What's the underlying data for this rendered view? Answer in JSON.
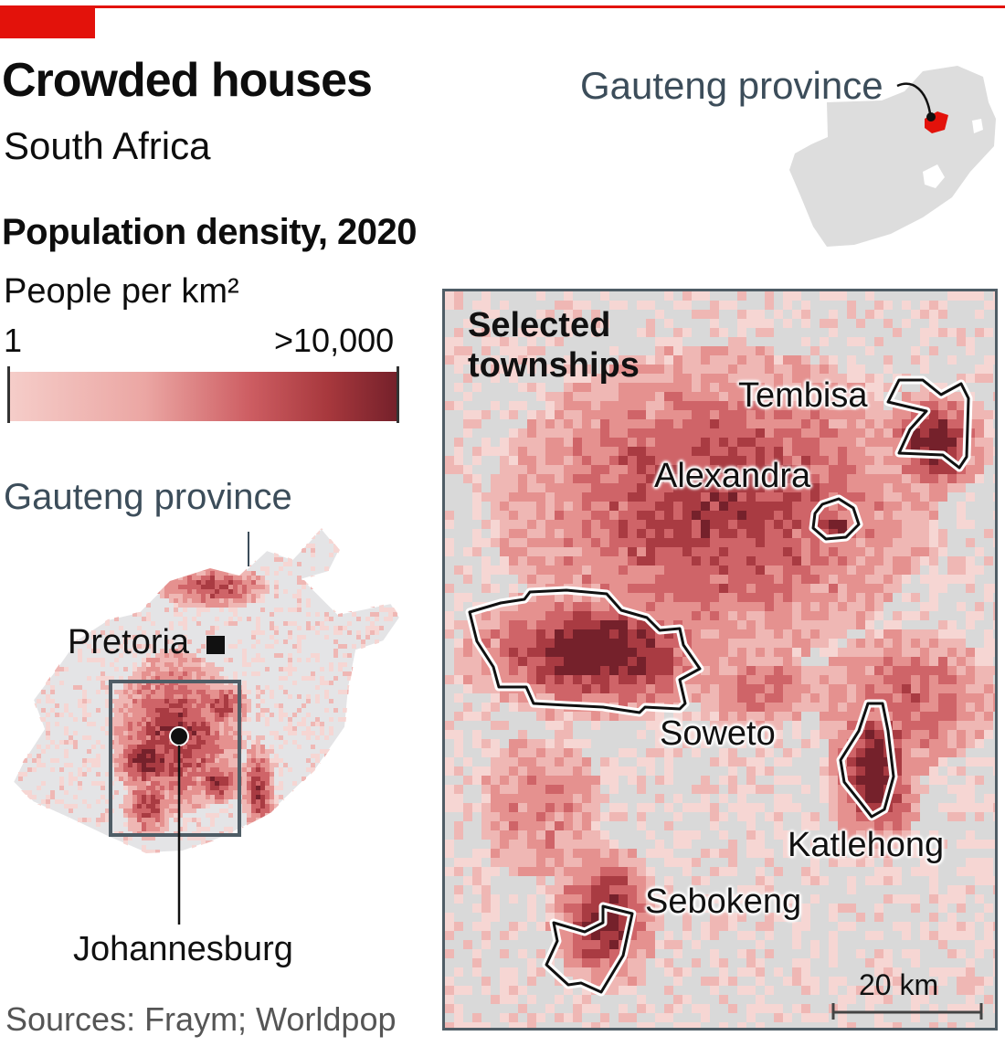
{
  "title": "Crowded houses",
  "subtitle": "South Africa",
  "legend": {
    "title": "Population density, 2020",
    "unit": "People per km²",
    "min_label": "1",
    "max_label": ">10,000",
    "colors": [
      "#f5cdc9",
      "#eba6a3",
      "#cd5d62",
      "#a7383d",
      "#74202a"
    ]
  },
  "inset": {
    "label": "Gauteng province",
    "country_color": "#dddddd",
    "highlight_color": "#e3120b"
  },
  "province_map": {
    "label": "Gauteng province",
    "cities": [
      {
        "name": "Pretoria",
        "marker": "square"
      },
      {
        "name": "Johannesburg",
        "marker": "circle"
      }
    ]
  },
  "detail_map": {
    "title": "Selected\ntownships",
    "townships": [
      "Tembisa",
      "Alexandra",
      "Soweto",
      "Katlehong",
      "Sebokeng"
    ],
    "scale_bar": "20 km"
  },
  "source": "Sources: Fraym; Worldpop",
  "colors": {
    "accent_red": "#e3120b",
    "label_slate": "#3c4d5a",
    "frame": "#4f5d66",
    "background_land": "#d9d9d9"
  }
}
